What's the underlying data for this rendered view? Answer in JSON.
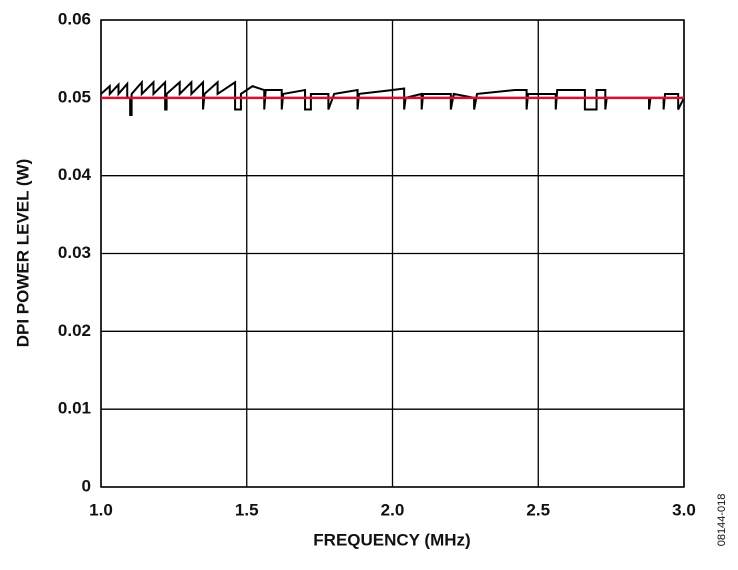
{
  "chart_data": {
    "type": "line",
    "xlabel": "FREQUENCY (MHz)",
    "ylabel": "DPI POWER LEVEL (W)",
    "figure_id": "08144-018",
    "xlim": [
      1,
      3
    ],
    "xticks": [
      {
        "value": 1,
        "label": "1.0"
      },
      1.5,
      {
        "value": 2,
        "label": "2.0"
      },
      2.5,
      {
        "value": 3,
        "label": "3.0"
      }
    ],
    "ylim": [
      0,
      0.06
    ],
    "yticks": [
      0,
      0.01,
      0.02,
      0.03,
      0.04,
      0.05,
      0.06
    ],
    "grid": true,
    "series": [
      {
        "color": "#000000",
        "x": [
          1.0,
          1.03,
          1.03,
          1.06,
          1.06,
          1.09,
          1.09,
          1.1,
          1.1,
          1.105,
          1.105,
          1.14,
          1.14,
          1.18,
          1.18,
          1.22,
          1.22,
          1.225,
          1.225,
          1.27,
          1.27,
          1.31,
          1.31,
          1.35,
          1.35,
          1.355,
          1.4,
          1.4,
          1.46,
          1.46,
          1.48,
          1.48,
          1.52,
          1.56,
          1.56,
          1.565,
          1.62,
          1.62,
          1.625,
          1.7,
          1.7,
          1.72,
          1.72,
          1.78,
          1.78,
          1.8,
          1.88,
          1.88,
          1.885,
          2.0,
          2.04,
          2.04,
          2.045,
          2.1,
          2.1,
          2.105,
          2.2,
          2.2,
          2.21,
          2.28,
          2.28,
          2.29,
          2.42,
          2.46,
          2.46,
          2.465,
          2.56,
          2.56,
          2.565,
          2.66,
          2.66,
          2.7,
          2.7,
          2.73,
          2.73,
          2.735,
          2.88,
          2.88,
          2.885,
          2.93,
          2.93,
          2.935,
          2.98,
          2.98,
          3.0
        ],
        "values": [
          0.0505,
          0.0515,
          0.0505,
          0.0517,
          0.0505,
          0.0518,
          0.05,
          0.05,
          0.0478,
          0.0478,
          0.0505,
          0.052,
          0.0505,
          0.052,
          0.0505,
          0.052,
          0.0485,
          0.0485,
          0.0505,
          0.052,
          0.0505,
          0.052,
          0.0505,
          0.052,
          0.0485,
          0.0505,
          0.052,
          0.0505,
          0.052,
          0.0485,
          0.0485,
          0.0505,
          0.0515,
          0.051,
          0.0485,
          0.051,
          0.051,
          0.0485,
          0.0505,
          0.051,
          0.0485,
          0.0485,
          0.0505,
          0.0505,
          0.0485,
          0.0505,
          0.051,
          0.0485,
          0.0505,
          0.051,
          0.0512,
          0.0485,
          0.05,
          0.0505,
          0.0485,
          0.0505,
          0.0505,
          0.0485,
          0.0505,
          0.05,
          0.0485,
          0.0505,
          0.051,
          0.051,
          0.0485,
          0.0505,
          0.0505,
          0.0485,
          0.051,
          0.051,
          0.0485,
          0.0485,
          0.051,
          0.051,
          0.0485,
          0.05,
          0.05,
          0.0485,
          0.05,
          0.05,
          0.0485,
          0.0505,
          0.0505,
          0.0485,
          0.05
        ]
      },
      {
        "color": "#d2122e",
        "x": [
          1,
          3
        ],
        "values": [
          0.05,
          0.05
        ]
      }
    ]
  }
}
